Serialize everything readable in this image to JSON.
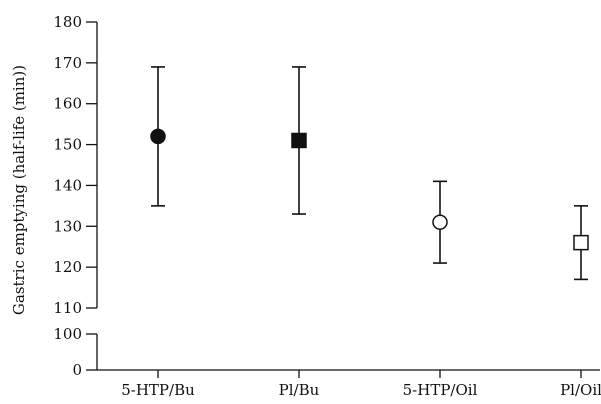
{
  "chart_data": {
    "type": "scatter",
    "ylabel": "Gastric emptying (half-life (min))",
    "xlabel": "",
    "title": "",
    "y_axis_break": [
      100,
      110
    ],
    "yticks_lower": [
      0,
      100
    ],
    "yticks_upper": [
      110,
      120,
      130,
      140,
      150,
      160,
      170,
      180
    ],
    "ylim": [
      0,
      180
    ],
    "grid": false,
    "points": [
      {
        "category": "5-HTP/Bu",
        "mean": 152,
        "lower": 135,
        "upper": 169,
        "marker": "filled-circle"
      },
      {
        "category": "Pl/Bu",
        "mean": 151,
        "lower": 133,
        "upper": 169,
        "marker": "filled-square"
      },
      {
        "category": "5-HTP/Oil",
        "mean": 131,
        "lower": 121,
        "upper": 141,
        "marker": "open-circle"
      },
      {
        "category": "Pl/Oil",
        "mean": 126,
        "lower": 117,
        "upper": 135,
        "marker": "open-square"
      }
    ],
    "colors": {
      "ink": "#111111",
      "open_fill": "#ffffff"
    }
  }
}
